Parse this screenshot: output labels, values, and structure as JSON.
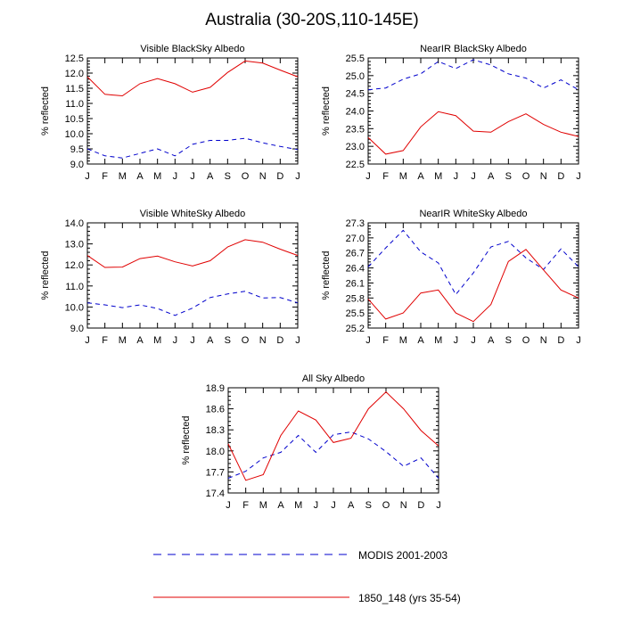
{
  "title": "Australia (30-20S,110-145E)",
  "colors": {
    "modis": "#0000cc",
    "model": "#e00000"
  },
  "legend": [
    {
      "name": "MODIS 2001-2003",
      "style": "dashed",
      "color": "#0000cc"
    },
    {
      "name": "1850_148 (yrs 35-54)",
      "style": "solid",
      "color": "#e00000"
    }
  ],
  "chart_data": [
    {
      "type": "line",
      "title": "Visible BlackSky Albedo",
      "ylabel": "% reflected",
      "categories": [
        "J",
        "F",
        "M",
        "A",
        "M",
        "J",
        "J",
        "A",
        "S",
        "O",
        "N",
        "D",
        "J"
      ],
      "ylim": [
        9.0,
        12.5
      ],
      "yticks": [
        "9.0",
        "9.5",
        "10.0",
        "10.5",
        "11.0",
        "11.5",
        "12.0",
        "12.5"
      ],
      "series": [
        {
          "name": "MODIS 2001-2003",
          "style": "dashed",
          "values": [
            9.5,
            9.27,
            9.2,
            9.35,
            9.5,
            9.27,
            9.65,
            9.78,
            9.78,
            9.85,
            9.7,
            9.58,
            9.48
          ]
        },
        {
          "name": "1850_148 (yrs 35-54)",
          "style": "solid",
          "values": [
            11.88,
            11.3,
            11.25,
            11.65,
            11.82,
            11.65,
            11.37,
            11.53,
            12.02,
            12.4,
            12.33,
            12.1,
            11.88
          ]
        }
      ]
    },
    {
      "type": "line",
      "title": "NearIR BlackSky Albedo",
      "ylabel": "% reflected",
      "categories": [
        "J",
        "F",
        "M",
        "A",
        "M",
        "J",
        "J",
        "A",
        "S",
        "O",
        "N",
        "D",
        "J"
      ],
      "ylim": [
        22.5,
        25.5
      ],
      "yticks": [
        "22.5",
        "23.0",
        "23.5",
        "24.0",
        "24.5",
        "25.0",
        "25.5"
      ],
      "series": [
        {
          "name": "MODIS 2001-2003",
          "style": "dashed",
          "values": [
            24.6,
            24.65,
            24.9,
            25.05,
            25.4,
            25.2,
            25.45,
            25.3,
            25.05,
            24.93,
            24.65,
            24.88,
            24.6
          ]
        },
        {
          "name": "1850_148 (yrs 35-54)",
          "style": "solid",
          "values": [
            23.25,
            22.78,
            22.88,
            23.55,
            23.98,
            23.87,
            23.43,
            23.4,
            23.7,
            23.92,
            23.62,
            23.4,
            23.28
          ]
        }
      ]
    },
    {
      "type": "line",
      "title": "Visible WhiteSky Albedo",
      "ylabel": "% reflected",
      "categories": [
        "J",
        "F",
        "M",
        "A",
        "M",
        "J",
        "J",
        "A",
        "S",
        "O",
        "N",
        "D",
        "J"
      ],
      "ylim": [
        9.0,
        14.0
      ],
      "yticks": [
        "9.0",
        "10.0",
        "11.0",
        "12.0",
        "13.0",
        "14.0"
      ],
      "series": [
        {
          "name": "MODIS 2001-2003",
          "style": "dashed",
          "values": [
            10.2,
            10.1,
            9.97,
            10.1,
            9.93,
            9.6,
            9.95,
            10.45,
            10.62,
            10.75,
            10.43,
            10.45,
            10.2
          ]
        },
        {
          "name": "1850_148 (yrs 35-54)",
          "style": "solid",
          "values": [
            12.45,
            11.88,
            11.9,
            12.3,
            12.42,
            12.15,
            11.95,
            12.2,
            12.85,
            13.2,
            13.08,
            12.75,
            12.45
          ]
        }
      ]
    },
    {
      "type": "line",
      "title": "NearIR WhiteSky Albedo",
      "ylabel": "% reflected",
      "categories": [
        "J",
        "F",
        "M",
        "A",
        "M",
        "J",
        "J",
        "A",
        "S",
        "O",
        "N",
        "D",
        "J"
      ],
      "ylim": [
        25.2,
        27.3
      ],
      "yticks": [
        "25.2",
        "25.5",
        "25.8",
        "26.1",
        "26.4",
        "26.7",
        "27.0",
        "27.3"
      ],
      "series": [
        {
          "name": "MODIS 2001-2003",
          "style": "dashed",
          "values": [
            26.42,
            26.8,
            27.15,
            26.72,
            26.5,
            25.87,
            26.3,
            26.82,
            26.93,
            26.6,
            26.37,
            26.78,
            26.42
          ]
        },
        {
          "name": "1850_148 (yrs 35-54)",
          "style": "solid",
          "values": [
            25.78,
            25.38,
            25.5,
            25.9,
            25.96,
            25.5,
            25.33,
            25.67,
            26.53,
            26.77,
            26.36,
            25.96,
            25.8
          ]
        }
      ]
    },
    {
      "type": "line",
      "title": "All Sky Albedo",
      "ylabel": "% reflected",
      "categories": [
        "J",
        "F",
        "M",
        "A",
        "M",
        "J",
        "J",
        "A",
        "S",
        "O",
        "N",
        "D",
        "J"
      ],
      "ylim": [
        17.4,
        18.9
      ],
      "yticks": [
        "17.4",
        "17.7",
        "18.0",
        "18.3",
        "18.6",
        "18.9"
      ],
      "series": [
        {
          "name": "MODIS 2001-2003",
          "style": "dashed",
          "values": [
            17.61,
            17.71,
            17.9,
            17.98,
            18.22,
            17.98,
            18.23,
            18.27,
            18.17,
            17.99,
            17.78,
            17.9,
            17.61
          ]
        },
        {
          "name": "1850_148 (yrs 35-54)",
          "style": "solid",
          "values": [
            18.1,
            17.58,
            17.66,
            18.22,
            18.57,
            18.44,
            18.12,
            18.18,
            18.6,
            18.84,
            18.6,
            18.29,
            18.07
          ]
        }
      ]
    }
  ]
}
